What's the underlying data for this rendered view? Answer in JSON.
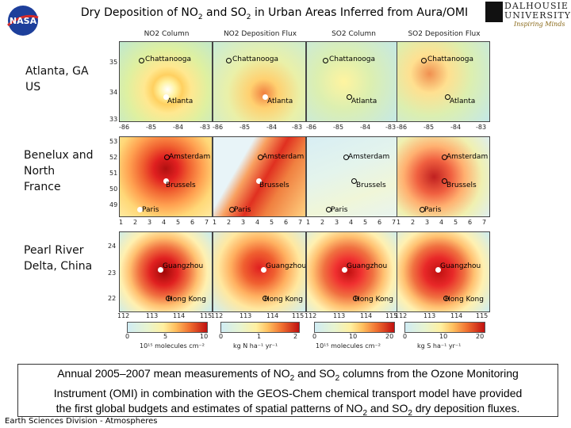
{
  "title": {
    "text_a": "Dry Deposition of NO",
    "sub_a": "2",
    "text_b": " and SO",
    "sub_b": "2",
    "text_c": " in Urban Areas Inferred from Aura/OMI"
  },
  "logos": {
    "nasa": "NASA",
    "university_name": "DALHOUSIE UNIVERSITY",
    "university_tagline": "Inspiring Minds"
  },
  "columns": [
    "NO2 Column",
    "NO2 Deposition Flux",
    "SO2 Column",
    "SO2 Deposition Flux"
  ],
  "rows": [
    {
      "label": "Atlanta, GA US",
      "cities": [
        "Chattanooga",
        "Atlanta"
      ],
      "lat_ticks": [
        "35",
        "34",
        "33"
      ],
      "lon_ticks": [
        "-86",
        "-85",
        "-84",
        "-83"
      ]
    },
    {
      "label": "Benelux and North France",
      "cities": [
        "Amsterdam",
        "Brussels",
        "Paris"
      ],
      "lat_ticks": [
        "53",
        "52",
        "51",
        "50",
        "49"
      ],
      "lon_ticks": [
        "1",
        "2",
        "3",
        "4",
        "5",
        "6",
        "7"
      ]
    },
    {
      "label": "Pearl River Delta, China",
      "cities": [
        "Guangzhou",
        "Hong Kong"
      ],
      "lat_ticks": [
        "24",
        "23",
        "22"
      ],
      "lon_ticks": [
        "112",
        "113",
        "114",
        "115"
      ]
    }
  ],
  "colorbars": [
    {
      "ticks": [
        "0",
        "5",
        "10"
      ],
      "unit": "10¹⁵ molecules cm⁻²"
    },
    {
      "ticks": [
        "0",
        "1",
        "2"
      ],
      "unit": "kg N ha⁻¹ yr⁻¹"
    },
    {
      "ticks": [
        "0",
        "10",
        "20"
      ],
      "unit": "10¹⁵ molecules cm⁻²"
    },
    {
      "ticks": [
        "0",
        "10",
        "20"
      ],
      "unit": "kg S ha⁻¹ yr⁻¹"
    }
  ],
  "caption": {
    "line1_a": "Annual 2005–2007 mean measurements of NO",
    "line1_b": " and SO",
    "line1_c": " columns from the Ozone Monitoring",
    "line2": "Instrument (OMI) in combination with the GEOS-Chem chemical transport model have provided",
    "line3_a": "the first global budgets and estimates of spatial patterns of NO",
    "line3_b": " and SO",
    "line3_c": " dry deposition fluxes.",
    "sub": "2"
  },
  "footer": "Earth Sciences Division - Atmospheres"
}
